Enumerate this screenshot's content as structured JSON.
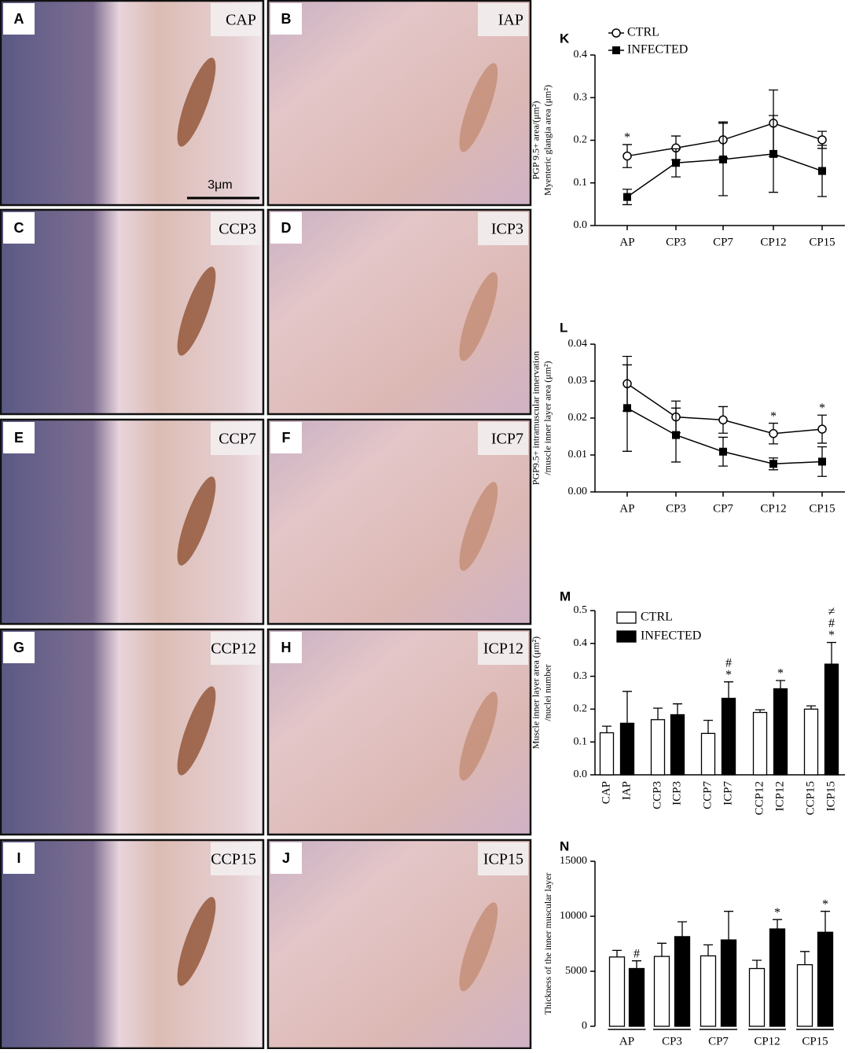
{
  "panels": [
    {
      "letter": "A",
      "label": "CAP"
    },
    {
      "letter": "B",
      "label": "IAP"
    },
    {
      "letter": "C",
      "label": "CCP3"
    },
    {
      "letter": "D",
      "label": "ICP3"
    },
    {
      "letter": "E",
      "label": "CCP7"
    },
    {
      "letter": "F",
      "label": "ICP7"
    },
    {
      "letter": "G",
      "label": "CCP12"
    },
    {
      "letter": "H",
      "label": "ICP12"
    },
    {
      "letter": "I",
      "label": "CCP15"
    },
    {
      "letter": "J",
      "label": "ICP15"
    }
  ],
  "scale_bar": "3μm",
  "chart_data": [
    {
      "type": "line",
      "panel": "K",
      "ylabel": [
        "PGP 9.5+ area/(μm²)",
        "Myenteric glangia area (μm²)"
      ],
      "categories": [
        "AP",
        "CP3",
        "CP7",
        "CP12",
        "CP15"
      ],
      "series": [
        {
          "name": "CTRL",
          "color": "#000000",
          "marker": "circle-open",
          "values": [
            0.163,
            0.182,
            0.201,
            0.24,
            0.201
          ],
          "errors": [
            0.027,
            0.028,
            0.042,
            0.078,
            0.02
          ]
        },
        {
          "name": "INFECTED",
          "color": "#000000",
          "marker": "square",
          "values": [
            0.067,
            0.147,
            0.155,
            0.168,
            0.128
          ],
          "errors": [
            0.018,
            0.033,
            0.085,
            0.09,
            0.06
          ]
        }
      ],
      "ylim": [
        0,
        0.4
      ],
      "yticks": [
        {
          "value": 0,
          "label": "0.0"
        },
        0.1,
        0.2,
        0.3,
        0.4
      ],
      "annotations": [
        {
          "category": "AP",
          "series": "CTRL",
          "texts": [
            "*"
          ]
        }
      ]
    },
    {
      "type": "line",
      "panel": "L",
      "ylabel": [
        "PGP9.5+ intramuscular innervation",
        "/muscle inner layer area (μm²)"
      ],
      "categories": [
        "AP",
        "CP3",
        "CP7",
        "CP12",
        "CP15"
      ],
      "series": [
        {
          "name": "CTRL",
          "color": "#000000",
          "marker": "circle-open",
          "values": [
            0.0293,
            0.0203,
            0.0195,
            0.0158,
            0.017
          ],
          "errors": [
            0.0074,
            0.0043,
            0.0036,
            0.0028,
            0.0038
          ]
        },
        {
          "name": "INFECTED",
          "color": "#000000",
          "marker": "square",
          "values": [
            0.0227,
            0.0154,
            0.0109,
            0.0076,
            0.0082
          ],
          "errors": [
            0.0117,
            0.0073,
            0.0039,
            0.0016,
            0.004
          ]
        }
      ],
      "ylim": [
        0,
        0.04
      ],
      "yticks": [
        {
          "value": 0,
          "label": "0.00"
        },
        0.01,
        0.02,
        0.03,
        0.04
      ],
      "annotations": [
        {
          "category": "CP12",
          "series": "CTRL",
          "texts": [
            "*"
          ]
        },
        {
          "category": "CP15",
          "series": "CTRL",
          "texts": [
            "*"
          ]
        }
      ]
    },
    {
      "type": "bar",
      "panel": "M",
      "ylabel": [
        "Muscle inner layer area (μm²)",
        "/nuclei number"
      ],
      "categories": [
        "CAP",
        "IAP",
        "CCP3",
        "ICP3",
        "CCP7",
        "ICP7",
        "CCP12",
        "ICP12",
        "CCP15",
        "ICP15"
      ],
      "series": [
        {
          "name": "CTRL",
          "color": "#ffffff",
          "values": [
            0.128,
            null,
            0.168,
            null,
            0.126,
            null,
            0.19,
            null,
            0.2,
            null
          ],
          "errors": [
            0.02,
            null,
            0.035,
            null,
            0.04,
            null,
            0.008,
            null,
            0.01,
            null
          ]
        },
        {
          "name": "INFECTED",
          "color": "#000000",
          "values": [
            null,
            0.157,
            null,
            0.183,
            null,
            0.233,
            null,
            0.262,
            null,
            0.337
          ],
          "errors": [
            null,
            0.097,
            null,
            0.033,
            null,
            0.05,
            null,
            0.025,
            null,
            0.066
          ]
        }
      ],
      "ylim": [
        0,
        0.5
      ],
      "yticks": [
        {
          "value": 0,
          "label": "0.0"
        },
        0.1,
        0.2,
        0.3,
        0.4,
        0.5
      ],
      "annotations": [
        {
          "category": "ICP7",
          "series": "INFECTED",
          "texts": [
            "#",
            "*"
          ]
        },
        {
          "category": "ICP12",
          "series": "INFECTED",
          "texts": [
            "*"
          ]
        },
        {
          "category": "ICP15",
          "series": "INFECTED",
          "texts": [
            "≠",
            "#",
            "*"
          ]
        }
      ]
    },
    {
      "type": "bar",
      "panel": "N",
      "ylabel": [
        "Thickness of the inner muscular layer"
      ],
      "categories": [
        "AP",
        "CP3",
        "CP7",
        "CP12",
        "CP15"
      ],
      "series": [
        {
          "name": "CTRL",
          "color": "#ffffff",
          "values": [
            6300,
            6350,
            6400,
            5250,
            5600
          ],
          "errors": [
            600,
            1200,
            1000,
            750,
            1200
          ]
        },
        {
          "name": "INFECTED",
          "color": "#000000",
          "values": [
            5250,
            8150,
            7850,
            8850,
            8550
          ],
          "errors": [
            700,
            1350,
            2600,
            850,
            1900
          ]
        }
      ],
      "ylim": [
        0,
        15000
      ],
      "yticks": [
        0,
        5000,
        10000,
        15000
      ],
      "annotations": [
        {
          "category": "AP",
          "series": "INFECTED",
          "texts": [
            "#"
          ]
        },
        {
          "category": "CP12",
          "series": "INFECTED",
          "texts": [
            "*"
          ]
        },
        {
          "category": "CP15",
          "series": "INFECTED",
          "texts": [
            "*"
          ]
        }
      ]
    }
  ]
}
